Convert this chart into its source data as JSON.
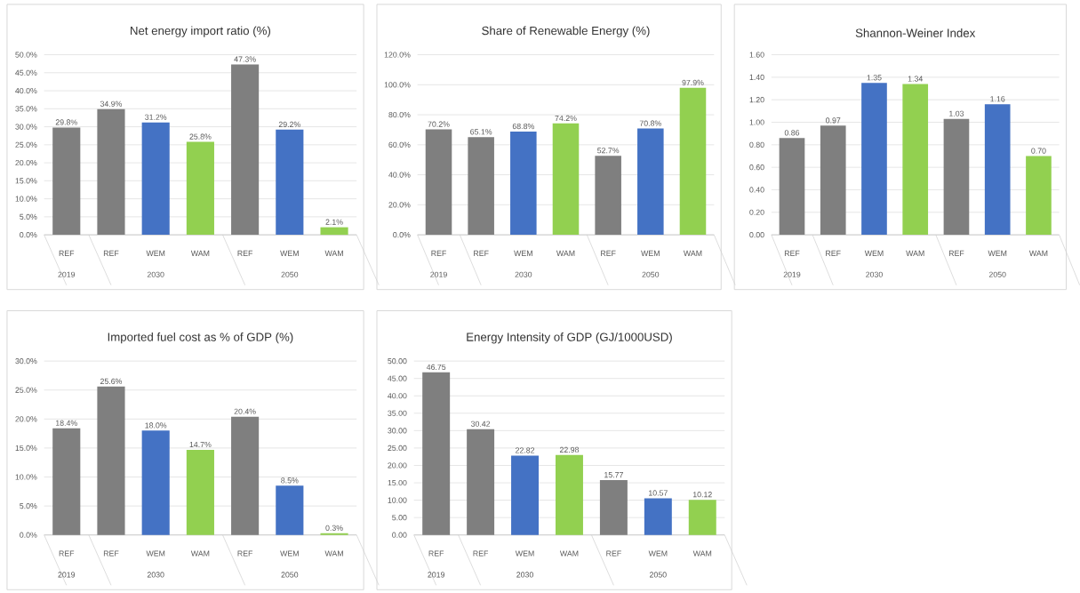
{
  "chart_data": [
    {
      "type": "bar",
      "title": "Net energy import ratio (%)",
      "categories": [
        "REF",
        "REF",
        "WEM",
        "WAM",
        "REF",
        "WEM",
        "WAM"
      ],
      "values": [
        29.8,
        34.9,
        31.2,
        25.8,
        47.3,
        29.2,
        2.1
      ],
      "value_labels": [
        "29.8%",
        "34.9%",
        "31.2%",
        "25.8%",
        "47.3%",
        "29.2%",
        "2.1%"
      ],
      "colors": [
        "#7f7f7f",
        "#7f7f7f",
        "#4472c4",
        "#92d050",
        "#7f7f7f",
        "#4472c4",
        "#92d050"
      ],
      "ylim": [
        0,
        50
      ],
      "yticks": [
        {
          "value": 0,
          "label": "0.0%"
        },
        {
          "value": 5,
          "label": "5.0%"
        },
        {
          "value": 10,
          "label": "10.0%"
        },
        {
          "value": 15,
          "label": "15.0%"
        },
        {
          "value": 20,
          "label": "20.0%"
        },
        {
          "value": 25,
          "label": "25.0%"
        },
        {
          "value": 30,
          "label": "30.0%"
        },
        {
          "value": 35,
          "label": "35.0%"
        },
        {
          "value": 40,
          "label": "40.0%"
        },
        {
          "value": 45,
          "label": "45.0%"
        },
        {
          "value": 50,
          "label": "50.0%"
        }
      ],
      "grid": "y",
      "annotations": [
        "2019",
        "2030",
        "2050"
      ]
    },
    {
      "type": "bar",
      "title": "Share of Renewable Energy (%)",
      "categories": [
        "REF",
        "REF",
        "WEM",
        "WAM",
        "REF",
        "WEM",
        "WAM"
      ],
      "values": [
        70.2,
        65.1,
        68.8,
        74.2,
        52.7,
        70.8,
        97.9
      ],
      "value_labels": [
        "70.2%",
        "65.1%",
        "68.8%",
        "74.2%",
        "52.7%",
        "70.8%",
        "97.9%"
      ],
      "colors": [
        "#7f7f7f",
        "#7f7f7f",
        "#4472c4",
        "#92d050",
        "#7f7f7f",
        "#4472c4",
        "#92d050"
      ],
      "ylim": [
        0,
        120
      ],
      "yticks": [
        {
          "value": 0,
          "label": "0.0%"
        },
        {
          "value": 20,
          "label": "20.0%"
        },
        {
          "value": 40,
          "label": "40.0%"
        },
        {
          "value": 60,
          "label": "60.0%"
        },
        {
          "value": 80,
          "label": "80.0%"
        },
        {
          "value": 100,
          "label": "100.0%"
        },
        {
          "value": 120,
          "label": "120.0%"
        }
      ],
      "grid": "y",
      "annotations": [
        "2019",
        "2030",
        "2050"
      ]
    },
    {
      "type": "bar",
      "title": "Shannon-Weiner Index",
      "categories": [
        "REF",
        "REF",
        "WEM",
        "WAM",
        "REF",
        "WEM",
        "WAM"
      ],
      "values": [
        0.86,
        0.97,
        1.35,
        1.34,
        1.03,
        1.16,
        0.7
      ],
      "value_labels": [
        "0.86",
        "0.97",
        "1.35",
        "1.34",
        "1.03",
        "1.16",
        "0.70"
      ],
      "colors": [
        "#7f7f7f",
        "#7f7f7f",
        "#4472c4",
        "#92d050",
        "#7f7f7f",
        "#4472c4",
        "#92d050"
      ],
      "ylim": [
        0,
        1.6
      ],
      "yticks": [
        {
          "value": 0,
          "label": "0.00"
        },
        {
          "value": 0.2,
          "label": "0.20"
        },
        {
          "value": 0.4,
          "label": "0.40"
        },
        {
          "value": 0.6,
          "label": "0.60"
        },
        {
          "value": 0.8,
          "label": "0.80"
        },
        {
          "value": 1.0,
          "label": "1.00"
        },
        {
          "value": 1.2,
          "label": "1.20"
        },
        {
          "value": 1.4,
          "label": "1.40"
        },
        {
          "value": 1.6,
          "label": "1.60"
        }
      ],
      "grid": "y",
      "annotations": [
        "2019",
        "2030",
        "2050"
      ]
    },
    {
      "type": "bar",
      "title": "Imported fuel cost as % of GDP (%)",
      "categories": [
        "REF",
        "REF",
        "WEM",
        "WAM",
        "REF",
        "WEM",
        "WAM"
      ],
      "values": [
        18.4,
        25.6,
        18.0,
        14.7,
        20.4,
        8.5,
        0.3
      ],
      "value_labels": [
        "18.4%",
        "25.6%",
        "18.0%",
        "14.7%",
        "20.4%",
        "8.5%",
        "0.3%"
      ],
      "colors": [
        "#7f7f7f",
        "#7f7f7f",
        "#4472c4",
        "#92d050",
        "#7f7f7f",
        "#4472c4",
        "#92d050"
      ],
      "ylim": [
        0,
        30
      ],
      "yticks": [
        {
          "value": 0,
          "label": "0.0%"
        },
        {
          "value": 5,
          "label": "5.0%"
        },
        {
          "value": 10,
          "label": "10.0%"
        },
        {
          "value": 15,
          "label": "15.0%"
        },
        {
          "value": 20,
          "label": "20.0%"
        },
        {
          "value": 25,
          "label": "25.0%"
        },
        {
          "value": 30,
          "label": "30.0%"
        }
      ],
      "grid": "y",
      "annotations": [
        "2019",
        "2030",
        "2050"
      ]
    },
    {
      "type": "bar",
      "title": "Energy Intensity of GDP (GJ/1000USD)",
      "categories": [
        "REF",
        "REF",
        "WEM",
        "WAM",
        "REF",
        "WEM",
        "WAM"
      ],
      "values": [
        46.75,
        30.42,
        22.82,
        22.98,
        15.77,
        10.57,
        10.12
      ],
      "value_labels": [
        "46.75",
        "30.42",
        "22.82",
        "22.98",
        "15.77",
        "10.57",
        "10.12"
      ],
      "colors": [
        "#7f7f7f",
        "#7f7f7f",
        "#4472c4",
        "#92d050",
        "#7f7f7f",
        "#4472c4",
        "#92d050"
      ],
      "ylim": [
        0,
        50
      ],
      "yticks": [
        {
          "value": 0,
          "label": "0.00"
        },
        {
          "value": 5,
          "label": "5.00"
        },
        {
          "value": 10,
          "label": "10.00"
        },
        {
          "value": 15,
          "label": "15.00"
        },
        {
          "value": 20,
          "label": "20.00"
        },
        {
          "value": 25,
          "label": "25.00"
        },
        {
          "value": 30,
          "label": "30.00"
        },
        {
          "value": 35,
          "label": "35.00"
        },
        {
          "value": 40,
          "label": "40.00"
        },
        {
          "value": 45,
          "label": "45.00"
        },
        {
          "value": 50,
          "label": "50.00"
        }
      ],
      "grid": "y",
      "annotations": [
        "2019",
        "2030",
        "2050"
      ]
    }
  ]
}
